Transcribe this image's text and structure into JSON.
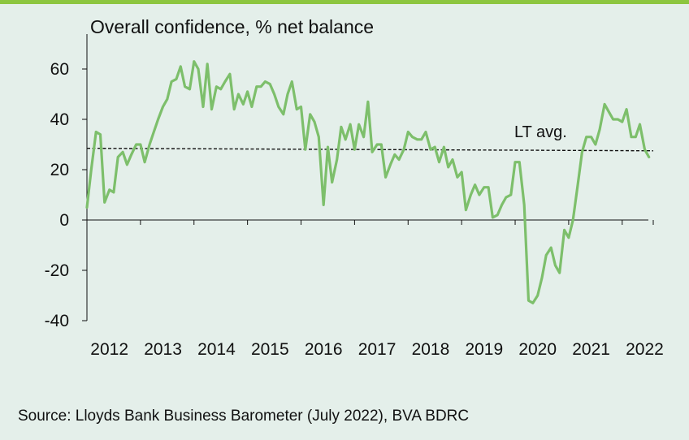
{
  "page": {
    "background": "#e4efea",
    "accent": "#8cc63f"
  },
  "chart_data": {
    "type": "line",
    "title": "Overall confidence, % net balance",
    "source": "Source: Lloyds Bank Business Barometer (July 2022), BVA BDRC",
    "xlabel": "",
    "ylabel": "",
    "ylim": [
      -40,
      70
    ],
    "yticks": [
      -40,
      -20,
      0,
      20,
      40,
      60
    ],
    "ytick_labels": [
      "-40",
      "-20",
      "0",
      "20",
      "40",
      "60"
    ],
    "xlim": [
      2012.0,
      2022.58
    ],
    "xtick_labels": [
      "2012",
      "2013",
      "2014",
      "2015",
      "2016",
      "2017",
      "2018",
      "2019",
      "2020",
      "2021",
      "2022"
    ],
    "grid": false,
    "series": [
      {
        "name": "Overall confidence",
        "color": "#7dbf6b",
        "x": [
          2012.0,
          2012.08,
          2012.17,
          2012.25,
          2012.33,
          2012.42,
          2012.5,
          2012.58,
          2012.67,
          2012.75,
          2012.83,
          2012.92,
          2013.0,
          2013.08,
          2013.17,
          2013.25,
          2013.33,
          2013.42,
          2013.5,
          2013.58,
          2013.67,
          2013.75,
          2013.83,
          2013.92,
          2014.0,
          2014.08,
          2014.17,
          2014.25,
          2014.33,
          2014.42,
          2014.5,
          2014.58,
          2014.67,
          2014.75,
          2014.83,
          2014.92,
          2015.0,
          2015.08,
          2015.17,
          2015.25,
          2015.33,
          2015.42,
          2015.5,
          2015.58,
          2015.67,
          2015.75,
          2015.83,
          2015.92,
          2016.0,
          2016.08,
          2016.17,
          2016.25,
          2016.33,
          2016.42,
          2016.5,
          2016.58,
          2016.67,
          2016.75,
          2016.83,
          2016.92,
          2017.0,
          2017.08,
          2017.17,
          2017.25,
          2017.33,
          2017.42,
          2017.5,
          2017.58,
          2017.67,
          2017.75,
          2017.83,
          2017.92,
          2018.0,
          2018.08,
          2018.17,
          2018.25,
          2018.33,
          2018.42,
          2018.5,
          2018.58,
          2018.67,
          2018.75,
          2018.83,
          2018.92,
          2019.0,
          2019.08,
          2019.17,
          2019.25,
          2019.33,
          2019.42,
          2019.5,
          2019.58,
          2019.67,
          2019.75,
          2019.83,
          2019.92,
          2020.0,
          2020.08,
          2020.17,
          2020.25,
          2020.33,
          2020.42,
          2020.5,
          2020.58,
          2020.67,
          2020.75,
          2020.83,
          2020.92,
          2021.0,
          2021.08,
          2021.17,
          2021.25,
          2021.33,
          2021.42,
          2021.5,
          2021.58,
          2021.67,
          2021.75,
          2021.83,
          2021.92,
          2022.0,
          2022.08,
          2022.17,
          2022.25,
          2022.33,
          2022.42,
          2022.5
        ],
        "values": [
          5,
          20,
          35,
          34,
          7,
          12,
          11,
          25,
          27,
          22,
          26,
          30,
          30,
          23,
          30,
          35,
          40,
          45,
          48,
          55,
          56,
          61,
          53,
          52,
          63,
          60,
          45,
          62,
          44,
          53,
          52,
          55,
          58,
          44,
          50,
          46,
          51,
          45,
          53,
          53,
          55,
          54,
          50,
          45,
          42,
          50,
          55,
          44,
          45,
          28,
          42,
          39,
          33,
          6,
          29,
          15,
          24,
          37,
          32,
          38,
          28,
          38,
          33,
          47,
          27,
          30,
          30,
          17,
          22,
          26,
          24,
          28,
          35,
          33,
          32,
          32,
          35,
          28,
          29,
          23,
          29,
          21,
          24,
          17,
          19,
          4,
          10,
          14,
          10,
          13,
          13,
          1,
          2,
          6,
          9,
          10,
          23,
          23,
          6,
          -32,
          -33,
          -30,
          -23,
          -14,
          -11,
          -18,
          -21,
          -4,
          -7,
          0,
          14,
          27,
          33,
          33,
          30,
          36,
          46,
          43,
          40,
          40,
          39,
          44,
          33,
          33,
          38,
          28,
          25
        ]
      }
    ],
    "reference_lines": [
      {
        "label": "LT avg.",
        "start": [
          2012.0,
          28.5
        ],
        "end": [
          2022.58,
          27.5
        ],
        "style": "dashed",
        "color": "#111111"
      }
    ]
  }
}
